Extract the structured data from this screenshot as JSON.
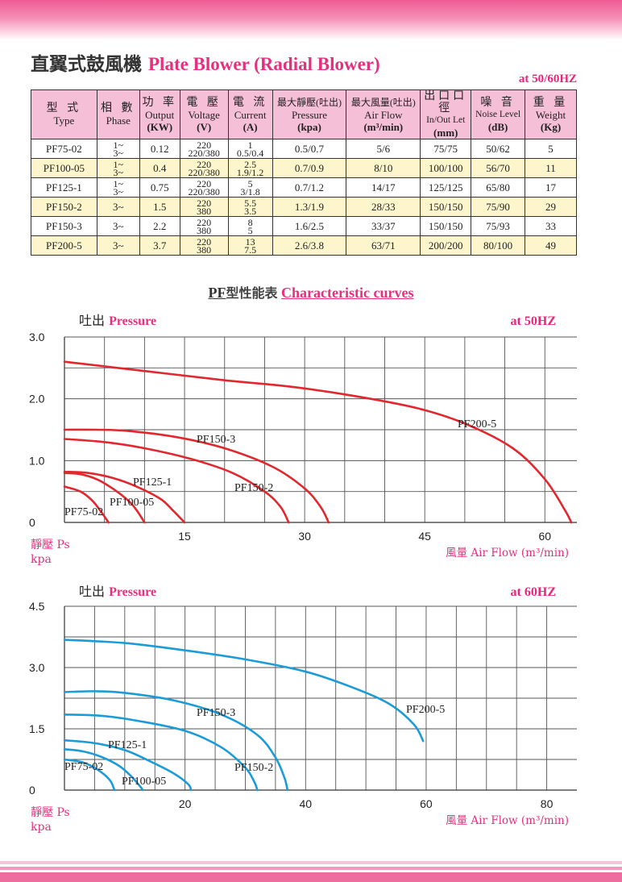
{
  "heading": {
    "zh": "直翼式鼓風機",
    "en": "Plate Blower (Radial Blower)"
  },
  "table_freq": "at 50/60HZ",
  "table": {
    "headers": [
      {
        "zh": "型 式",
        "en": "Type",
        "unit": ""
      },
      {
        "zh": "相 數",
        "en": "Phase",
        "unit": ""
      },
      {
        "zh": "功 率",
        "en": "Output",
        "unit": "(KW)"
      },
      {
        "zh": "電 壓",
        "en": "Voltage",
        "unit": "(V)"
      },
      {
        "zh": "電 流",
        "en": "Current",
        "unit": "(A)"
      },
      {
        "zh": "最大靜壓(吐出)",
        "en": "Pressure",
        "unit": "(kpa)"
      },
      {
        "zh": "最大風量(吐出)",
        "en": "Air Flow",
        "unit": "(m³/min)"
      },
      {
        "zh": "出口口徑",
        "en": "In/Out Let",
        "unit": "(mm)"
      },
      {
        "zh": "噪 音",
        "en": "Noise Level",
        "unit": "(dB)"
      },
      {
        "zh": "重 量",
        "en": "Weight",
        "unit": "(Kg)"
      }
    ],
    "rows": [
      {
        "type": "PF75-02",
        "phase": [
          "1~",
          "3~"
        ],
        "output": "0.12",
        "voltage": [
          "220",
          "220/380"
        ],
        "current": [
          "1",
          "0.5/0.4"
        ],
        "pressure": "0.5/0.7",
        "airflow": "5/6",
        "inout": "75/75",
        "noise": "50/62",
        "weight": "5"
      },
      {
        "type": "PF100-05",
        "phase": [
          "1~",
          "3~"
        ],
        "output": "0.4",
        "voltage": [
          "220",
          "220/380"
        ],
        "current": [
          "2.5",
          "1.9/1.2"
        ],
        "pressure": "0.7/0.9",
        "airflow": "8/10",
        "inout": "100/100",
        "noise": "56/70",
        "weight": "11"
      },
      {
        "type": "PF125-1",
        "phase": [
          "1~",
          "3~"
        ],
        "output": "0.75",
        "voltage": [
          "220",
          "220/380"
        ],
        "current": [
          "5",
          "3/1.8"
        ],
        "pressure": "0.7/1.2",
        "airflow": "14/17",
        "inout": "125/125",
        "noise": "65/80",
        "weight": "17"
      },
      {
        "type": "PF150-2",
        "phase": [
          "3~"
        ],
        "output": "1.5",
        "voltage": [
          "220",
          "380"
        ],
        "current": [
          "5.5",
          "3.5"
        ],
        "pressure": "1.3/1.9",
        "airflow": "28/33",
        "inout": "150/150",
        "noise": "75/90",
        "weight": "29"
      },
      {
        "type": "PF150-3",
        "phase": [
          "3~"
        ],
        "output": "2.2",
        "voltage": [
          "220",
          "380"
        ],
        "current": [
          "8",
          "5"
        ],
        "pressure": "1.6/2.5",
        "airflow": "33/37",
        "inout": "150/150",
        "noise": "75/93",
        "weight": "33"
      },
      {
        "type": "PF200-5",
        "phase": [
          "3~"
        ],
        "output": "3.7",
        "voltage": [
          "220",
          "380"
        ],
        "current": [
          "13",
          "7.5"
        ],
        "pressure": "2.6/3.8",
        "airflow": "63/71",
        "inout": "200/200",
        "noise": "80/100",
        "weight": "49"
      }
    ]
  },
  "curves_title": {
    "pf": "PF",
    "zh": "型性能表",
    "en": "Characteristic curves"
  },
  "chart_data": [
    {
      "type": "line",
      "title": "吐出 Pressure",
      "freq_label": "at 50HZ",
      "ylabel": "靜壓 Ps kpa",
      "xlabel": "風量 Air Flow (m³/min)",
      "xlim": [
        0,
        64
      ],
      "ylim": [
        0,
        3.0
      ],
      "x_ticks": [
        15,
        30,
        45,
        60
      ],
      "y_ticks": [
        0,
        1.0,
        2.0,
        3.0
      ],
      "y_tick_labels": [
        "0",
        "1.0",
        "2.0",
        "3.0"
      ],
      "color": "#e0282e",
      "grid": true,
      "series": [
        {
          "name": "PF200-5",
          "points": [
            [
              0,
              2.6
            ],
            [
              10,
              2.45
            ],
            [
              20,
              2.3
            ],
            [
              28,
              2.2
            ],
            [
              36,
              2.05
            ],
            [
              44,
              1.85
            ],
            [
              50,
              1.6
            ],
            [
              56,
              1.2
            ],
            [
              60,
              0.7
            ],
            [
              62.5,
              0.2
            ],
            [
              63.3,
              0
            ]
          ]
        },
        {
          "name": "PF150-3",
          "points": [
            [
              0,
              1.5
            ],
            [
              4,
              1.5
            ],
            [
              8,
              1.48
            ],
            [
              14,
              1.38
            ],
            [
              20,
              1.2
            ],
            [
              26,
              0.9
            ],
            [
              30,
              0.55
            ],
            [
              32,
              0.25
            ],
            [
              33,
              0
            ]
          ]
        },
        {
          "name": "PF150-2",
          "points": [
            [
              0,
              1.35
            ],
            [
              5,
              1.3
            ],
            [
              10,
              1.2
            ],
            [
              16,
              1.02
            ],
            [
              21,
              0.8
            ],
            [
              25,
              0.5
            ],
            [
              27,
              0.25
            ],
            [
              28,
              0
            ]
          ]
        },
        {
          "name": "PF125-1",
          "points": [
            [
              0,
              0.82
            ],
            [
              3,
              0.8
            ],
            [
              6,
              0.72
            ],
            [
              9,
              0.58
            ],
            [
              12,
              0.38
            ],
            [
              13.5,
              0.2
            ],
            [
              15,
              0
            ]
          ]
        },
        {
          "name": "PF100-05",
          "points": [
            [
              0,
              0.8
            ],
            [
              2,
              0.78
            ],
            [
              4,
              0.7
            ],
            [
              6,
              0.55
            ],
            [
              8,
              0.35
            ],
            [
              9,
              0.2
            ],
            [
              10,
              0
            ]
          ]
        },
        {
          "name": "PF75-02",
          "points": [
            [
              0,
              0.58
            ],
            [
              2,
              0.5
            ],
            [
              3.5,
              0.35
            ],
            [
              4.7,
              0.15
            ],
            [
              5.5,
              0
            ]
          ]
        }
      ]
    },
    {
      "type": "line",
      "title": "吐出 Pressure",
      "freq_label": "at 60HZ",
      "ylabel": "靜壓 Ps kpa",
      "xlabel": "風量 Air Flow (m³/min)",
      "xlim": [
        0,
        85
      ],
      "ylim": [
        0,
        4.5
      ],
      "x_ticks": [
        20,
        40,
        60,
        80
      ],
      "y_ticks": [
        0,
        1.5,
        3.0,
        4.5
      ],
      "y_tick_labels": [
        "0",
        "1.5",
        "3.0",
        "4.5"
      ],
      "color": "#1b9bd7",
      "grid": true,
      "series": [
        {
          "name": "PF200-5",
          "points": [
            [
              0,
              3.68
            ],
            [
              10,
              3.6
            ],
            [
              20,
              3.42
            ],
            [
              30,
              3.2
            ],
            [
              40,
              2.9
            ],
            [
              48,
              2.5
            ],
            [
              54,
              2.1
            ],
            [
              58,
              1.6
            ],
            [
              59.5,
              1.2
            ]
          ]
        },
        {
          "name": "PF150-3",
          "points": [
            [
              0,
              2.4
            ],
            [
              5,
              2.42
            ],
            [
              10,
              2.38
            ],
            [
              18,
              2.2
            ],
            [
              26,
              1.85
            ],
            [
              32,
              1.35
            ],
            [
              35,
              0.8
            ],
            [
              36.5,
              0.3
            ],
            [
              37,
              0
            ]
          ]
        },
        {
          "name": "PF150-2",
          "points": [
            [
              0,
              1.85
            ],
            [
              6,
              1.82
            ],
            [
              12,
              1.7
            ],
            [
              20,
              1.45
            ],
            [
              26,
              1.05
            ],
            [
              30,
              0.55
            ],
            [
              31.5,
              0.2
            ],
            [
              32,
              0
            ]
          ]
        },
        {
          "name": "PF125-1",
          "points": [
            [
              0,
              1.22
            ],
            [
              5,
              1.15
            ],
            [
              10,
              0.98
            ],
            [
              14,
              0.72
            ],
            [
              18,
              0.42
            ],
            [
              20.5,
              0.15
            ],
            [
              21,
              0
            ]
          ]
        },
        {
          "name": "PF75-02",
          "points": [
            [
              0,
              0.75
            ],
            [
              3,
              0.68
            ],
            [
              5.5,
              0.5
            ],
            [
              7.5,
              0.25
            ],
            [
              8.3,
              0
            ]
          ]
        },
        {
          "name": "PF100-05",
          "points": [
            [
              0,
              1.0
            ],
            [
              3,
              0.95
            ],
            [
              6,
              0.82
            ],
            [
              9,
              0.6
            ],
            [
              11,
              0.35
            ],
            [
              12.5,
              0.1
            ],
            [
              13,
              0
            ]
          ]
        }
      ]
    }
  ]
}
